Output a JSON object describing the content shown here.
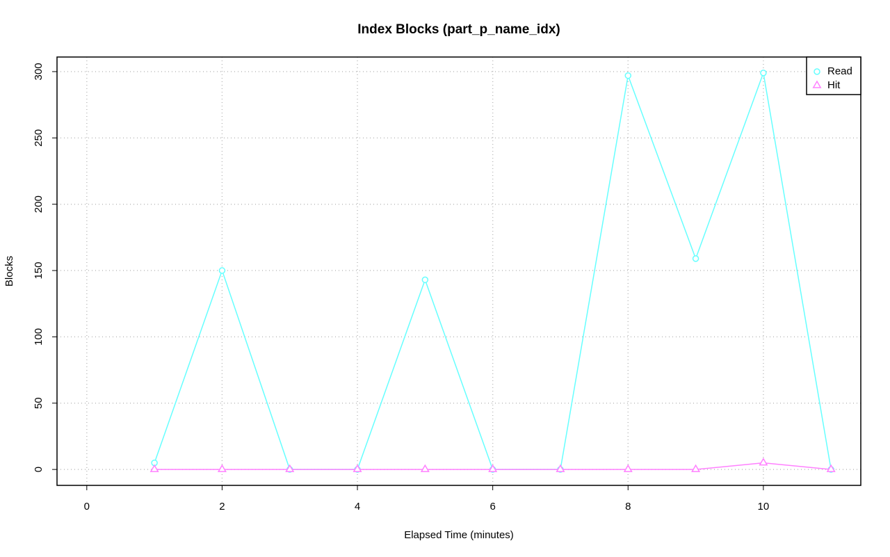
{
  "chart_data": {
    "type": "line",
    "title": "Index Blocks (part_p_name_idx)",
    "xlabel": "Elapsed Time (minutes)",
    "ylabel": "Blocks",
    "x": [
      1,
      2,
      3,
      4,
      5,
      6,
      7,
      8,
      9,
      10,
      11
    ],
    "series": [
      {
        "name": "Read",
        "color": "#66ffff",
        "marker": "circle",
        "values": [
          5,
          150,
          0,
          0,
          143,
          0,
          0,
          297,
          159,
          299,
          0
        ]
      },
      {
        "name": "Hit",
        "color": "#ff80ff",
        "marker": "triangle",
        "values": [
          0,
          0,
          0,
          0,
          0,
          0,
          0,
          0,
          0,
          5,
          0
        ]
      }
    ],
    "xlim": [
      -0.44,
      11.44
    ],
    "xticks": [
      0,
      2,
      4,
      6,
      8,
      10
    ],
    "ylim": [
      -12,
      311
    ],
    "yticks": [
      0,
      50,
      100,
      150,
      200,
      250,
      300
    ],
    "grid": true,
    "legend": "topright"
  }
}
